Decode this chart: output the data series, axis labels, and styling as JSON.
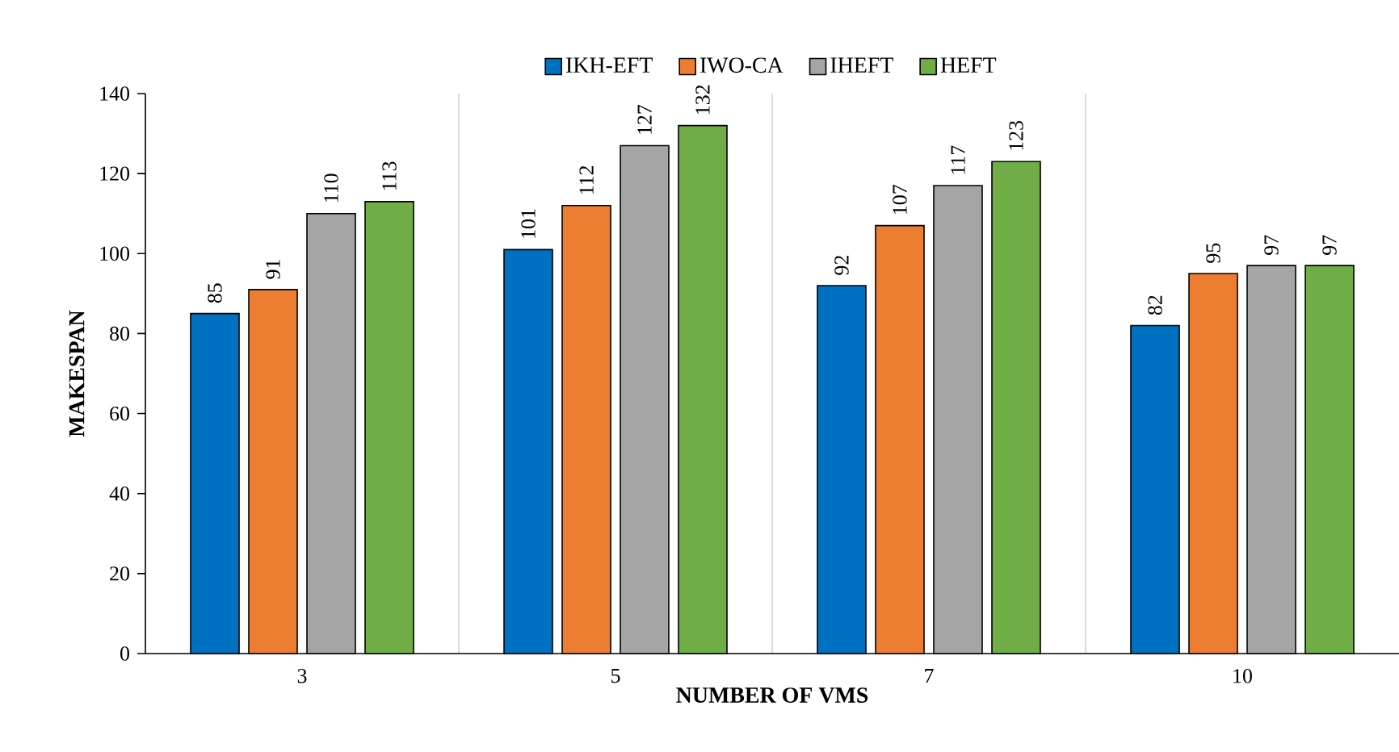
{
  "chart_data": {
    "type": "bar",
    "xlabel": "NUMBER OF VMS",
    "ylabel": "MAKESPAN",
    "categories": [
      "3",
      "5",
      "7",
      "10"
    ],
    "series": [
      {
        "name": "IKH-EFT",
        "color": "#0070c0",
        "values": [
          85,
          101,
          92,
          82
        ]
      },
      {
        "name": "IWO-CA",
        "color": "#ed7d31",
        "values": [
          91,
          112,
          107,
          95
        ]
      },
      {
        "name": "IHEFT",
        "color": "#a5a5a5",
        "values": [
          110,
          127,
          117,
          97
        ]
      },
      {
        "name": "HEFT",
        "color": "#70ad47",
        "values": [
          113,
          132,
          123,
          97
        ]
      }
    ],
    "ylim": [
      0,
      140
    ],
    "yticks": [
      0,
      20,
      40,
      60,
      80,
      100,
      120,
      140
    ],
    "grid": "x",
    "legend": "top",
    "data_labels": true
  }
}
